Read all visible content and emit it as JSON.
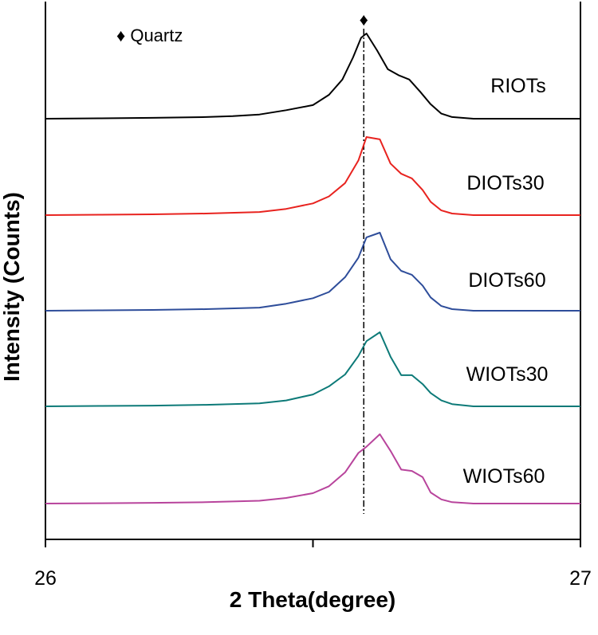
{
  "chart_data": {
    "type": "line",
    "title": "",
    "xlabel": "2 Theta(degree)",
    "ylabel": "Intensity (Counts)",
    "xlim": [
      26,
      27
    ],
    "x_ticks": [
      26,
      26.5,
      27
    ],
    "x_tick_labels": [
      "26",
      "",
      "27"
    ],
    "stacked_offset": true,
    "y_ticks_shown": false,
    "grid": false,
    "legend": "none",
    "annotations": [
      {
        "text": "♦ Quartz",
        "position": "top-left"
      },
      {
        "text": "♦",
        "x": 26.595,
        "line": "dashed-vertical",
        "label": "Quartz reflection"
      }
    ],
    "series": [
      {
        "name": "RIOTs",
        "color": "#000000",
        "x": [
          26.0,
          26.1,
          26.2,
          26.3,
          26.35,
          26.4,
          26.45,
          26.5,
          26.53,
          26.555,
          26.575,
          26.59,
          26.6,
          26.62,
          26.64,
          26.66,
          26.68,
          26.7,
          26.72,
          26.74,
          26.76,
          26.8,
          26.9,
          27.0
        ],
        "y": [
          0,
          0.5,
          1,
          2,
          3,
          5,
          10,
          16,
          28,
          46,
          72,
          95,
          100,
          80,
          58,
          51,
          46,
          32,
          17,
          6,
          2,
          0,
          0,
          0
        ]
      },
      {
        "name": "DIOTs30",
        "color": "#e8231f",
        "x": [
          26.0,
          26.1,
          26.2,
          26.3,
          26.4,
          26.45,
          26.5,
          26.53,
          26.56,
          26.585,
          26.6,
          26.625,
          26.645,
          26.665,
          26.685,
          26.705,
          26.72,
          26.74,
          26.76,
          26.8,
          26.9,
          27.0
        ],
        "y": [
          0,
          0.5,
          1,
          2,
          4,
          8,
          15,
          24,
          41,
          70,
          100,
          97,
          66,
          53,
          47,
          32,
          17,
          6,
          2,
          0,
          0,
          0
        ]
      },
      {
        "name": "DIOTs60",
        "color": "#2e4d9a",
        "x": [
          26.0,
          26.1,
          26.2,
          26.3,
          26.4,
          26.45,
          26.5,
          26.53,
          26.56,
          26.585,
          26.6,
          26.625,
          26.645,
          26.665,
          26.685,
          26.705,
          26.72,
          26.74,
          26.76,
          26.8,
          26.9,
          27.0
        ],
        "y": [
          0,
          0.5,
          1,
          2,
          4,
          9,
          16,
          24,
          43,
          68,
          94,
          100,
          66,
          51,
          46,
          32,
          17,
          6,
          2,
          0,
          0,
          0
        ]
      },
      {
        "name": "WIOTs30",
        "color": "#0d7a78",
        "x": [
          26.0,
          26.1,
          26.2,
          26.3,
          26.4,
          26.45,
          26.5,
          26.53,
          26.56,
          26.585,
          26.6,
          26.625,
          26.645,
          26.665,
          26.685,
          26.705,
          26.72,
          26.74,
          26.76,
          26.8,
          26.9,
          27.0
        ],
        "y": [
          0,
          0.5,
          1,
          2,
          4,
          8,
          16,
          27,
          43,
          68,
          88,
          100,
          67,
          42,
          42,
          30,
          18,
          8,
          3,
          0,
          0,
          0
        ]
      },
      {
        "name": "WIOTs60",
        "color": "#b8449c",
        "x": [
          26.0,
          26.1,
          26.2,
          26.3,
          26.4,
          26.45,
          26.5,
          26.53,
          26.56,
          26.585,
          26.6,
          26.625,
          26.645,
          26.665,
          26.685,
          26.705,
          26.72,
          26.74,
          26.76,
          26.8,
          26.9,
          27.0
        ],
        "y": [
          0,
          0.5,
          1,
          2,
          4,
          8,
          15,
          25,
          45,
          73,
          82,
          100,
          76,
          49,
          47,
          38,
          16,
          6,
          2,
          0,
          0,
          0
        ]
      }
    ]
  }
}
